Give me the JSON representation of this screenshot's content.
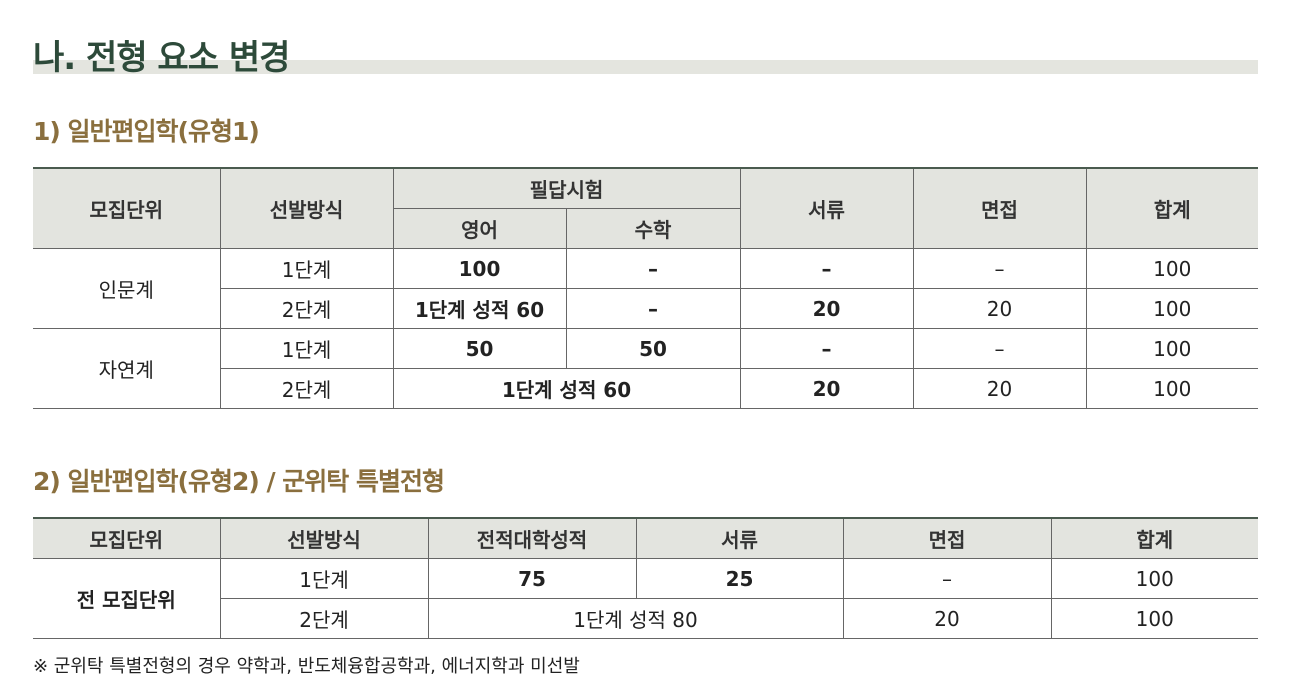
{
  "title": "나. 전형 요소 변경",
  "sections": [
    {
      "heading": "1) 일반편입학(유형1)",
      "table": {
        "header": [
          [
            "모집단위",
            "선발방식",
            "필답시험",
            "서류",
            "면접",
            "합계"
          ],
          [
            "영어",
            "수학"
          ]
        ],
        "rows": [
          [
            "인문계",
            "1단계",
            100,
            "–",
            "–",
            "–",
            100
          ],
          [
            "2단계",
            "1단계 성적 60",
            "–",
            20,
            20,
            100
          ],
          [
            "자연계",
            "1단계",
            50,
            50,
            "–",
            "–",
            100
          ],
          [
            "2단계",
            "1단계 성적 60",
            20,
            20,
            100
          ]
        ]
      }
    },
    {
      "heading": "2) 일반편입학(유형2) / 군위탁 특별전형",
      "table": {
        "header": [
          [
            "모집단위",
            "선발방식",
            "전적대학성적",
            "서류",
            "면접",
            "합계"
          ]
        ],
        "rows": [
          [
            "전 모집단위",
            "1단계",
            75,
            25,
            "–",
            100
          ],
          [
            "2단계",
            "1단계 성적 80",
            20,
            100
          ]
        ]
      }
    }
  ],
  "note": "※ 군위탁 특별전형의 경우 약학과, 반도체융합공학과, 에너지학과 미선발"
}
